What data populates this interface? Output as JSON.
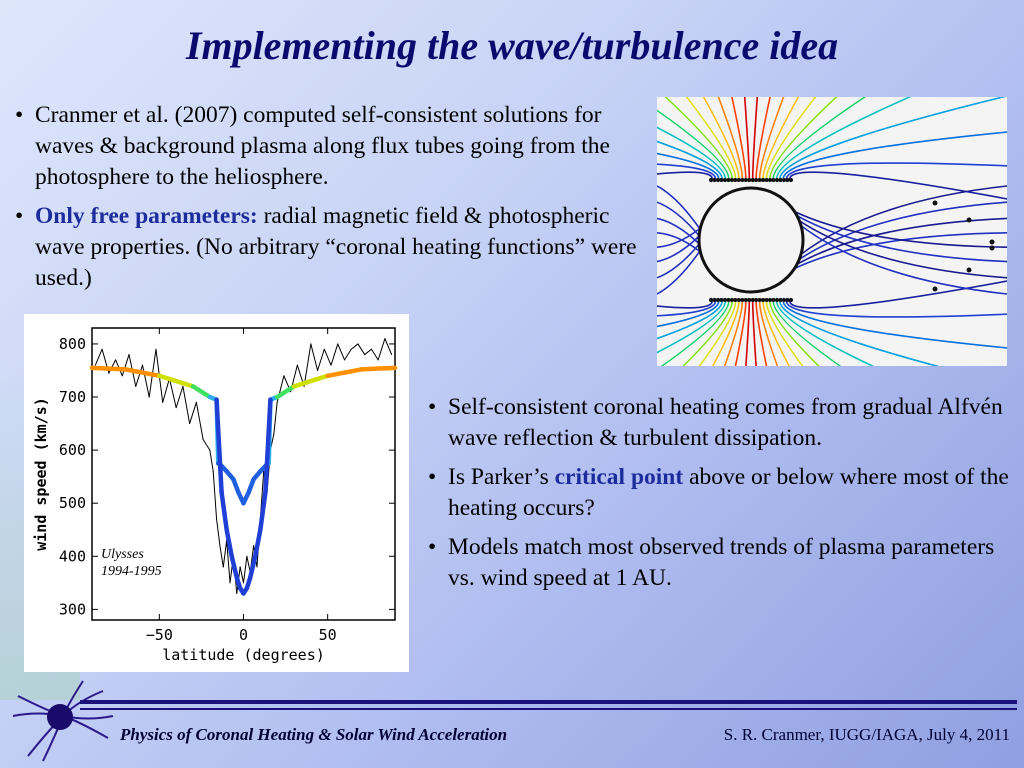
{
  "title": "Implementing the wave/turbulence idea",
  "bullets_top": [
    {
      "text": "Cranmer et al. (2007) computed self-consistent solutions for waves & background plasma along flux tubes going from the photosphere to the heliosphere."
    },
    {
      "highlight": "Only free parameters:",
      "text": " radial magnetic field & photospheric wave properties. (No arbitrary “coronal heating functions” were used.)"
    }
  ],
  "bullets_bottom": [
    {
      "text": "Self-consistent coronal heating comes from gradual Alfvén wave reflection & turbulent dissipation."
    },
    {
      "pre": "Is Parker’s ",
      "highlight": "critical point",
      "post": " above or below where most of the heating occurs?"
    },
    {
      "text": "Models match most observed trends of plasma parameters vs. wind speed at 1 AU."
    }
  ],
  "bullet_glyph": "•",
  "colors": {
    "title": "#0a0a6e",
    "highlight": "#1c2c9c",
    "footer_rule": "#1a127a"
  },
  "figure_caption": {
    "line1": "Ulysses",
    "line2": "1994-1995"
  },
  "chart_data": {
    "type": "line",
    "xlabel": "latitude (degrees)",
    "ylabel": "wind speed (km/s)",
    "xlim": [
      -90,
      90
    ],
    "ylim": [
      280,
      830
    ],
    "xticks": [
      -50,
      0,
      50
    ],
    "yticks": [
      300,
      400,
      500,
      600,
      700,
      800
    ],
    "annotation": "Ulysses 1994-1995",
    "series": [
      {
        "color": "#000000",
        "x": [
          -88,
          -84,
          -80,
          -76,
          -72,
          -68,
          -64,
          -60,
          -56,
          -52,
          -48,
          -44,
          -40,
          -36,
          -32,
          -28,
          -24,
          -20,
          -18,
          -16,
          -14,
          -12,
          -10,
          -8,
          -6,
          -4,
          -2,
          0,
          2,
          4,
          6,
          8,
          10,
          12,
          14,
          16,
          18,
          20,
          24,
          28,
          32,
          36,
          40,
          44,
          48,
          52,
          56,
          60,
          64,
          68,
          72,
          76,
          80,
          84,
          88
        ],
        "y": [
          760,
          790,
          745,
          770,
          740,
          780,
          720,
          760,
          700,
          790,
          690,
          735,
          680,
          720,
          650,
          690,
          620,
          600,
          560,
          470,
          420,
          380,
          430,
          350,
          400,
          330,
          380,
          350,
          400,
          370,
          420,
          380,
          470,
          560,
          520,
          600,
          630,
          690,
          740,
          710,
          760,
          720,
          800,
          750,
          790,
          760,
          800,
          770,
          790,
          800,
          780,
          790,
          770,
          810,
          780
        ]
      },
      {
        "color": "rainbow-model",
        "x": [
          -90,
          -70,
          -50,
          -30,
          -20,
          -16,
          -15,
          -13,
          -10,
          -6,
          -3,
          0,
          3,
          6,
          10,
          13,
          15,
          16,
          20,
          30,
          50,
          70,
          90
        ],
        "y": [
          755,
          752,
          740,
          720,
          700,
          695,
          575,
          570,
          560,
          545,
          520,
          500,
          520,
          545,
          560,
          570,
          575,
          695,
          700,
          720,
          740,
          752,
          755
        ]
      },
      {
        "color": "#1f3fd6",
        "x": [
          -16,
          -13,
          -10,
          -7,
          -4,
          -2,
          0,
          2,
          4,
          7,
          10,
          13,
          16
        ],
        "y": [
          695,
          520,
          450,
          400,
          360,
          340,
          330,
          340,
          360,
          400,
          450,
          520,
          695
        ]
      }
    ]
  }
}
